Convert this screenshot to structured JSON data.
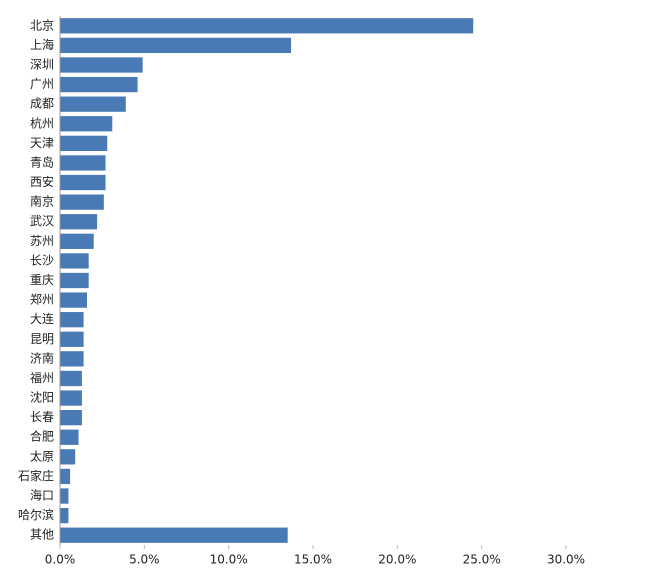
{
  "chart_data": {
    "type": "bar",
    "orientation": "horizontal",
    "categories": [
      "北京",
      "上海",
      "深圳",
      "广州",
      "成都",
      "杭州",
      "天津",
      "青岛",
      "西安",
      "南京",
      "武汉",
      "苏州",
      "长沙",
      "重庆",
      "郑州",
      "大连",
      "昆明",
      "济南",
      "福州",
      "沈阳",
      "长春",
      "合肥",
      "太原",
      "石家庄",
      "海口",
      "哈尔滨",
      "其他"
    ],
    "values": [
      24.5,
      13.7,
      4.9,
      4.6,
      3.9,
      3.1,
      2.8,
      2.7,
      2.7,
      2.6,
      2.2,
      2.0,
      1.7,
      1.7,
      1.6,
      1.4,
      1.4,
      1.4,
      1.3,
      1.3,
      1.3,
      1.1,
      0.9,
      0.6,
      0.5,
      0.5,
      13.5
    ],
    "color": "#4a7ab5",
    "xlim": [
      0,
      30
    ],
    "xticks": [
      {
        "value": 0,
        "label": "0.0%"
      },
      {
        "value": 5,
        "label": "5.0%"
      },
      {
        "value": 10,
        "label": "10.0%"
      },
      {
        "value": 15,
        "label": "15.0%"
      },
      {
        "value": 20,
        "label": "20.0%"
      },
      {
        "value": 25,
        "label": "25.0%"
      },
      {
        "value": 30,
        "label": "30.0%"
      }
    ],
    "grid": false
  }
}
